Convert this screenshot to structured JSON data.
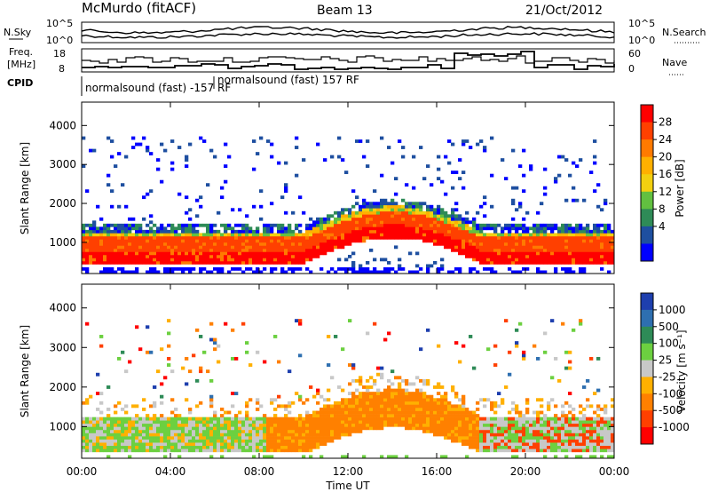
{
  "header": {
    "station": "McMurdo (fitACF)",
    "beam": "Beam 13",
    "date": "21/Oct/2012"
  },
  "noise_panel": {
    "left_label": "N.Sky",
    "left_ticks": [
      "10^5",
      "10^0"
    ],
    "right_label": "N.Search",
    "right_ticks": [
      "10^5",
      "10^0"
    ]
  },
  "freq_panel": {
    "left_label_1": "Freq.",
    "left_label_2": "[MHz]",
    "left_ticks": [
      "18",
      "8"
    ],
    "right_label": "Nave",
    "right_ticks": [
      "60",
      "0"
    ]
  },
  "cpid": {
    "label": "CPID",
    "mode_1": "normalsound (fast) -157 RF",
    "mode_2": "normalsound (fast) 157 RF"
  },
  "chart_data": [
    {
      "type": "heatmap",
      "name": "power",
      "ylabel": "Slant Range [km]",
      "xlabel": "Time UT",
      "x_ticks": [
        "00:00",
        "04:00",
        "08:00",
        "12:00",
        "16:00",
        "20:00",
        "00:00"
      ],
      "y_ticks": [
        1000,
        2000,
        3000,
        4000
      ],
      "ylim": [
        200,
        4600
      ],
      "colorbar_label": "Power [dB]",
      "colorbar_ticks": [
        "28",
        "24",
        "20",
        "16",
        "12",
        "8",
        "4"
      ],
      "colors": [
        "#ff0000",
        "#ff4000",
        "#ff7a00",
        "#ffb000",
        "#f2d010",
        "#62c040",
        "#2e8b57",
        "#1e4fa0",
        "#0000ff"
      ]
    },
    {
      "type": "heatmap",
      "name": "velocity",
      "ylabel": "Slant Range [km]",
      "xlabel": "Time UT",
      "x_ticks": [
        "00:00",
        "04:00",
        "08:00",
        "12:00",
        "16:00",
        "20:00",
        "00:00"
      ],
      "y_ticks": [
        1000,
        2000,
        3000,
        4000
      ],
      "ylim": [
        200,
        4600
      ],
      "colorbar_label": "Velocity [m s⁻¹]",
      "colorbar_ticks": [
        "1000",
        "500",
        "100",
        "25",
        "-25",
        "-100",
        "-500",
        "-1000"
      ],
      "colors": [
        "#1e3fae",
        "#2e6fb0",
        "#2e8b57",
        "#6cd040",
        "#c8c8c8",
        "#ffb000",
        "#ff8000",
        "#ff4000",
        "#ff0000"
      ]
    }
  ]
}
